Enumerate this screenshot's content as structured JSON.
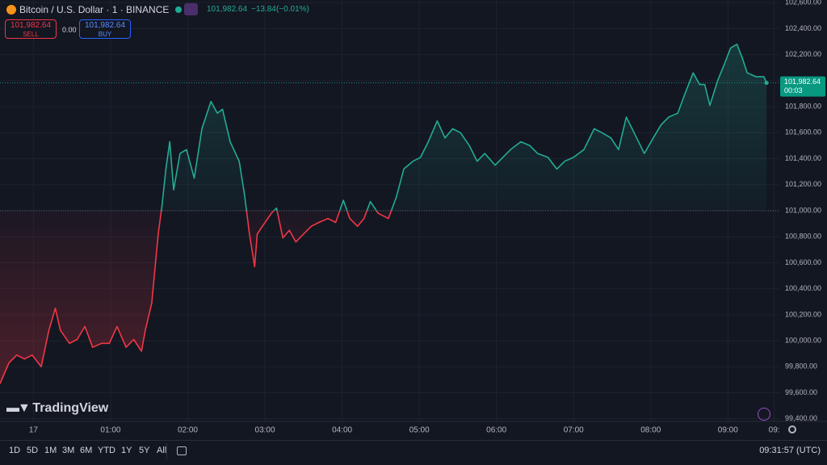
{
  "header": {
    "symbol": "Bitcoin / U.S. Dollar · 1 · BINANCE",
    "price": "101,982.64",
    "change": "−13.84",
    "change_percent": "(−0.01%)",
    "sell_price": "101,982.64",
    "sell": "SELL",
    "spread": "0.00",
    "buy_price": "101,982.64",
    "buy": "BUY"
  },
  "logo": "TradingView",
  "toolbar": {
    "ranges": [
      "1D",
      "5D",
      "1M",
      "3M",
      "6M",
      "YTD",
      "1Y",
      "5Y",
      "All"
    ],
    "clock": "09:31:57 (UTC)"
  },
  "chart_data": {
    "type": "baseline",
    "x": [
      -26,
      -19,
      -13,
      -7,
      -1,
      6,
      12,
      17,
      21,
      28,
      34,
      40,
      46,
      53,
      59,
      65,
      72,
      78,
      84,
      87,
      92,
      97,
      100,
      103,
      106,
      109,
      114,
      119,
      125,
      131,
      138,
      143,
      147,
      153,
      160,
      164,
      168,
      172,
      174,
      178,
      185,
      189,
      194,
      199,
      204,
      210,
      216,
      222,
      229,
      235,
      241,
      246,
      252,
      257,
      262,
      268,
      276,
      282,
      288,
      295,
      301,
      307,
      314,
      320,
      326,
      332,
      339,
      345,
      351,
      359,
      365,
      371,
      379,
      386,
      392,
      400,
      407,
      413,
      420,
      428,
      436,
      442,
      449,
      455,
      461,
      467,
      475,
      482,
      488,
      494,
      501,
      507,
      513,
      518,
      522,
      526,
      532,
      537,
      542,
      547,
      551,
      555,
      562,
      568,
      570
    ],
    "values": [
      99670,
      99830,
      99890,
      99860,
      99890,
      99800,
      100080,
      100250,
      100080,
      99980,
      100010,
      100110,
      99950,
      99980,
      99980,
      100110,
      99950,
      100010,
      99920,
      100080,
      100290,
      100820,
      101040,
      101320,
      101530,
      101160,
      101440,
      101470,
      101250,
      101630,
      101840,
      101750,
      101780,
      101530,
      101380,
      101130,
      100820,
      100570,
      100820,
      100880,
      100980,
      101020,
      100790,
      100850,
      100760,
      100820,
      100880,
      100910,
      100940,
      100910,
      101080,
      100940,
      100880,
      100940,
      101070,
      100980,
      100940,
      101100,
      101320,
      101380,
      101410,
      101530,
      101690,
      101560,
      101630,
      101600,
      101500,
      101380,
      101440,
      101350,
      101410,
      101470,
      101530,
      101500,
      101440,
      101410,
      101320,
      101380,
      101410,
      101470,
      101630,
      101600,
      101560,
      101470,
      101720,
      101600,
      101440,
      101560,
      101660,
      101720,
      101750,
      101910,
      102060,
      101970,
      101970,
      101810,
      102000,
      102120,
      102250,
      102280,
      102180,
      102060,
      102030,
      102030,
      101982.64
    ],
    "baseline": 101000,
    "color_above": "#22ab94",
    "color_below": "#f23645",
    "last_price": 101982.64,
    "last_price_label": "101,982.64",
    "countdown": "00:03",
    "xlim": [
      -26,
      580
    ],
    "xticks": [
      {
        "value": 0,
        "label": "17"
      },
      {
        "value": 60,
        "label": "01:00"
      },
      {
        "value": 120,
        "label": "02:00"
      },
      {
        "value": 180,
        "label": "03:00"
      },
      {
        "value": 240,
        "label": "04:00"
      },
      {
        "value": 300,
        "label": "05:00"
      },
      {
        "value": 360,
        "label": "06:00"
      },
      {
        "value": 420,
        "label": "07:00"
      },
      {
        "value": 480,
        "label": "08:00"
      },
      {
        "value": 540,
        "label": "09:00"
      },
      {
        "value": 576,
        "label": "09:"
      }
    ],
    "ylim": [
      99380,
      102620
    ],
    "yticks": [
      {
        "value": 99400,
        "label": "99,400.00"
      },
      {
        "value": 99600,
        "label": "99,600.00"
      },
      {
        "value": 99800,
        "label": "99,800.00"
      },
      {
        "value": 100000,
        "label": "100,000.00"
      },
      {
        "value": 100200,
        "label": "100,200.00"
      },
      {
        "value": 100400,
        "label": "100,400.00"
      },
      {
        "value": 100600,
        "label": "100,600.00"
      },
      {
        "value": 100800,
        "label": "100,800.00"
      },
      {
        "value": 101000,
        "label": "101,000.00"
      },
      {
        "value": 101200,
        "label": "101,200.00"
      },
      {
        "value": 101400,
        "label": "101,400.00"
      },
      {
        "value": 101600,
        "label": "101,600.00"
      },
      {
        "value": 101800,
        "label": "101,800.00"
      },
      {
        "value": 102000,
        "label": "102,000.00"
      },
      {
        "value": 102200,
        "label": "102,200.00"
      },
      {
        "value": 102400,
        "label": "102,400.00"
      },
      {
        "value": 102600,
        "label": "102,600.00"
      }
    ],
    "grid": true
  }
}
